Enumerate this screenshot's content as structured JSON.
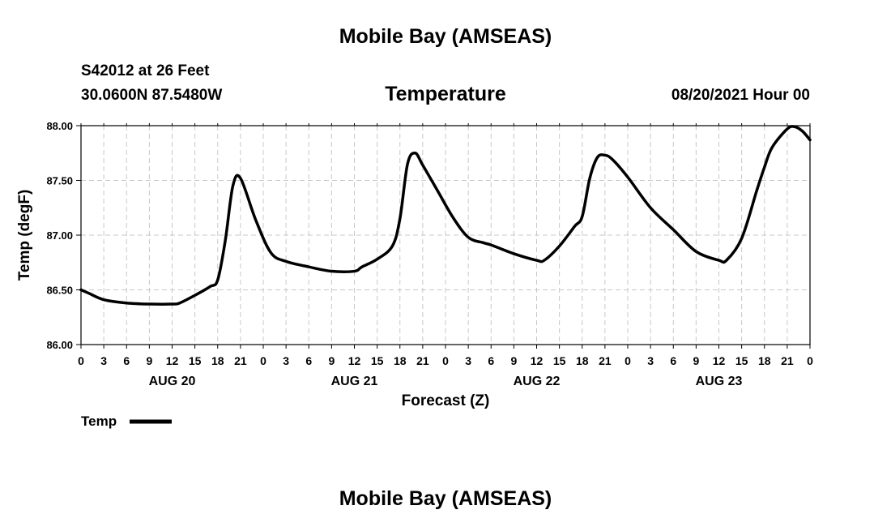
{
  "header": {
    "title": "Mobile Bay (AMSEAS)",
    "station_line": "S42012 at 26 Feet",
    "coords_line": "30.0600N  87.5480W",
    "variable": "Temperature",
    "run_time": "08/20/2021 Hour 00"
  },
  "footer": {
    "title": "Mobile Bay (AMSEAS)"
  },
  "legend": {
    "label": "Temp"
  },
  "chart_data": {
    "type": "line",
    "title": "Temperature",
    "xlabel": "Forecast (Z)",
    "ylabel": "Temp (degF)",
    "ylim": [
      86.0,
      88.0
    ],
    "xlim": [
      0,
      96
    ],
    "grid": true,
    "legend_position": "bottom-left",
    "y_ticks": [
      "86.00",
      "86.50",
      "87.00",
      "87.50",
      "88.00"
    ],
    "y_tick_values": [
      86.0,
      86.5,
      87.0,
      87.5,
      88.0
    ],
    "x_tick_labels": [
      "0",
      "3",
      "6",
      "9",
      "12",
      "15",
      "18",
      "21",
      "0",
      "3",
      "6",
      "9",
      "12",
      "15",
      "18",
      "21",
      "0",
      "3",
      "6",
      "9",
      "12",
      "15",
      "18",
      "21",
      "0",
      "3",
      "6",
      "9",
      "12",
      "15",
      "18",
      "21",
      "0"
    ],
    "x_tick_hours": [
      0,
      3,
      6,
      9,
      12,
      15,
      18,
      21,
      24,
      27,
      30,
      33,
      36,
      39,
      42,
      45,
      48,
      51,
      54,
      57,
      60,
      63,
      66,
      69,
      72,
      75,
      78,
      81,
      84,
      87,
      90,
      93,
      96
    ],
    "day_labels": [
      {
        "label": "AUG 20",
        "hour": 12
      },
      {
        "label": "AUG 21",
        "hour": 36
      },
      {
        "label": "AUG 22",
        "hour": 60
      },
      {
        "label": "AUG 23",
        "hour": 84
      }
    ],
    "series": [
      {
        "name": "Temp",
        "color": "#000000",
        "x": [
          0,
          1,
          3,
          6,
          9,
          12,
          13,
          15,
          17,
          18,
          19,
          20,
          21,
          23,
          25,
          27,
          30,
          33,
          36,
          37,
          39,
          41,
          42,
          43,
          44,
          45,
          47,
          49,
          51,
          53,
          54,
          57,
          60,
          61,
          63,
          65,
          66,
          67,
          68,
          69,
          70,
          72,
          75,
          78,
          81,
          84,
          85,
          87,
          89,
          90,
          91,
          93,
          94,
          95,
          96
        ],
        "values": [
          86.5,
          86.47,
          86.41,
          86.38,
          86.37,
          86.37,
          86.38,
          86.45,
          86.53,
          86.59,
          86.95,
          87.45,
          87.52,
          87.14,
          86.84,
          86.76,
          86.71,
          86.67,
          86.67,
          86.71,
          86.78,
          86.9,
          87.15,
          87.65,
          87.75,
          87.64,
          87.4,
          87.16,
          86.98,
          86.93,
          86.91,
          86.83,
          86.77,
          86.77,
          86.9,
          87.08,
          87.17,
          87.52,
          87.71,
          87.73,
          87.69,
          87.53,
          87.25,
          87.05,
          86.85,
          86.77,
          86.77,
          86.97,
          87.41,
          87.62,
          87.8,
          87.97,
          87.99,
          87.95,
          87.87
        ]
      }
    ]
  }
}
